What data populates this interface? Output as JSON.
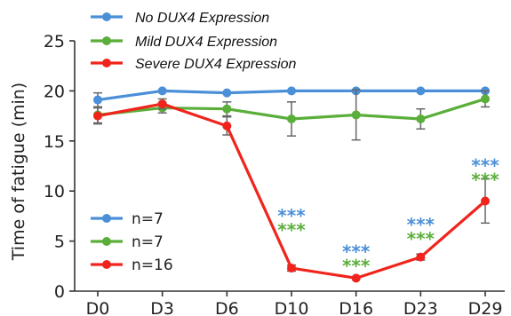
{
  "chart_data": {
    "type": "line",
    "categories": [
      "D0",
      "D3",
      "D6",
      "D10",
      "D16",
      "D23",
      "D29"
    ],
    "ylabel": "Time of fatigue (min)",
    "ylim": [
      0,
      25
    ],
    "yticks": [
      0,
      5,
      10,
      15,
      20,
      25
    ],
    "grid": false,
    "series": [
      {
        "name": "No DUX4 Expression",
        "color": "#4a8fd8",
        "values": [
          19.1,
          20.0,
          19.8,
          20.0,
          20.0,
          20.0,
          20.0
        ],
        "err": [
          0.7,
          0.2,
          0.2,
          0.2,
          0.2,
          0.2,
          0.2
        ],
        "count": "n=7"
      },
      {
        "name": "Mild DUX4 Expression",
        "color": "#5aae3a",
        "values": [
          17.6,
          18.3,
          18.2,
          17.2,
          17.6,
          17.2,
          19.2
        ],
        "err": [
          0.8,
          0.5,
          0.7,
          1.7,
          2.5,
          1.0,
          0.8
        ],
        "count": "n=7"
      },
      {
        "name": "Severe DUX4 Expression",
        "color": "#f0241c",
        "values": [
          17.5,
          18.7,
          16.5,
          2.3,
          1.3,
          3.4,
          9.0
        ],
        "err": [
          0.8,
          0.5,
          0.9,
          0.3,
          0.15,
          0.3,
          2.2
        ],
        "count": "n=16"
      }
    ],
    "annotations": [
      {
        "category": "D10",
        "blue": "***",
        "green": "***",
        "y_level": 7.8
      },
      {
        "category": "D16",
        "blue": "***",
        "green": "***",
        "y_level": 4.2
      },
      {
        "category": "D23",
        "blue": "***",
        "green": "***",
        "y_level": 6.9
      },
      {
        "category": "D29",
        "blue": "***",
        "green": "***",
        "y_level": 12.8
      }
    ],
    "annotation_colors": {
      "blue": "#4a8fd8",
      "green": "#5aae3a"
    }
  }
}
